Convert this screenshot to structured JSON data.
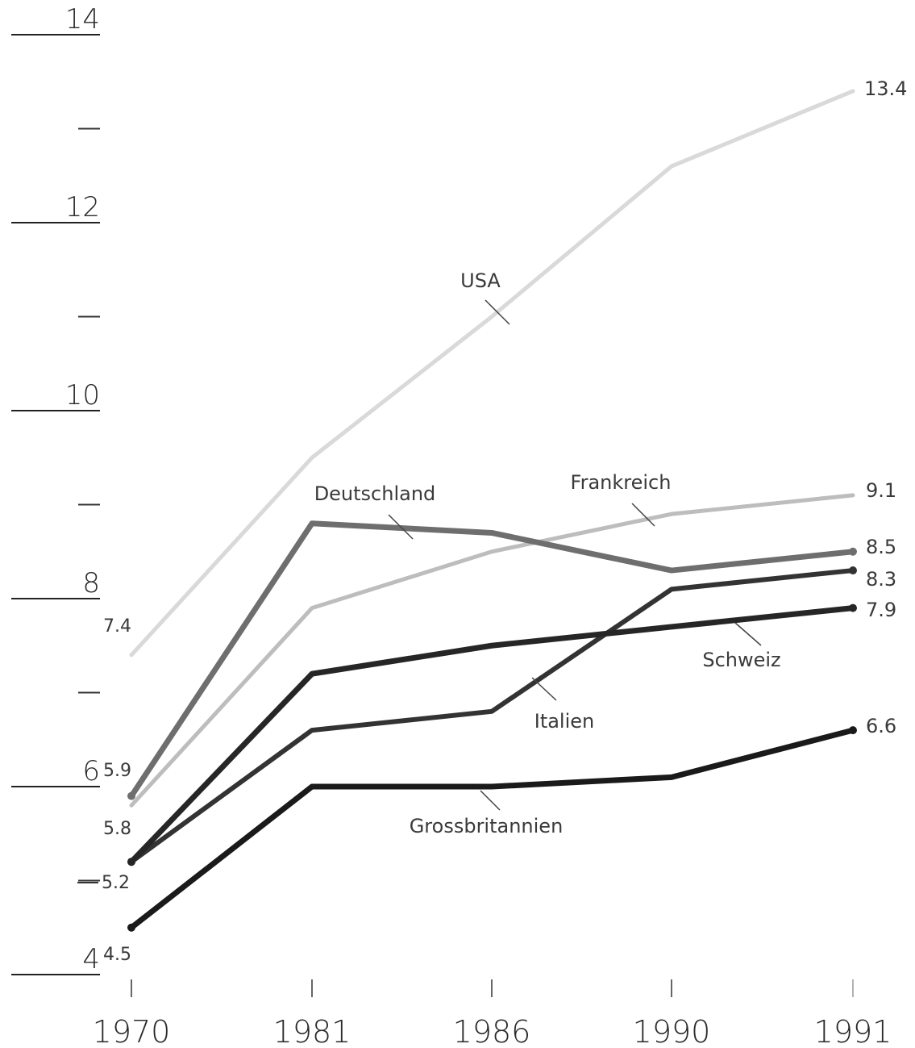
{
  "chart_data": {
    "type": "line",
    "title": "",
    "xlabel": "",
    "ylabel": "",
    "categories": [
      "1970",
      "1981",
      "1986",
      "1990",
      "1991"
    ],
    "ylim": [
      4,
      14
    ],
    "y_major_ticks": [
      "4",
      "6",
      "8",
      "10",
      "12",
      "14"
    ],
    "y_minor_ticks": [
      5,
      7,
      9,
      11,
      13
    ],
    "grid": false,
    "legend": "none (series labeled inline)",
    "series": [
      {
        "name": "USA",
        "values": [
          7.4,
          9.5,
          11.0,
          12.6,
          13.4
        ],
        "color": "#d9d9d9",
        "start_label": "7.4",
        "end_label": "13.4"
      },
      {
        "name": "Frankreich",
        "values": [
          5.8,
          7.9,
          8.5,
          8.9,
          9.1
        ],
        "color": "#bdbdbd",
        "start_label": "5.8",
        "end_label": "9.1"
      },
      {
        "name": "Deutschland",
        "values": [
          5.9,
          8.8,
          8.7,
          8.3,
          8.5
        ],
        "color": "#6e6e6e",
        "start_label": "5.9",
        "end_label": "8.5"
      },
      {
        "name": "Italien",
        "values": [
          5.2,
          6.6,
          6.8,
          8.1,
          8.3
        ],
        "color": "#333333",
        "start_label": "",
        "end_label": "8.3"
      },
      {
        "name": "Schweiz",
        "values": [
          5.2,
          7.2,
          7.5,
          7.7,
          7.9
        ],
        "color": "#262626",
        "start_label": "5.2",
        "end_label": "7.9"
      },
      {
        "name": "Grossbritannien",
        "values": [
          4.5,
          6.0,
          6.0,
          6.1,
          6.6
        ],
        "color": "#1a1a1a",
        "start_label": "4.5",
        "end_label": "6.6"
      }
    ]
  }
}
